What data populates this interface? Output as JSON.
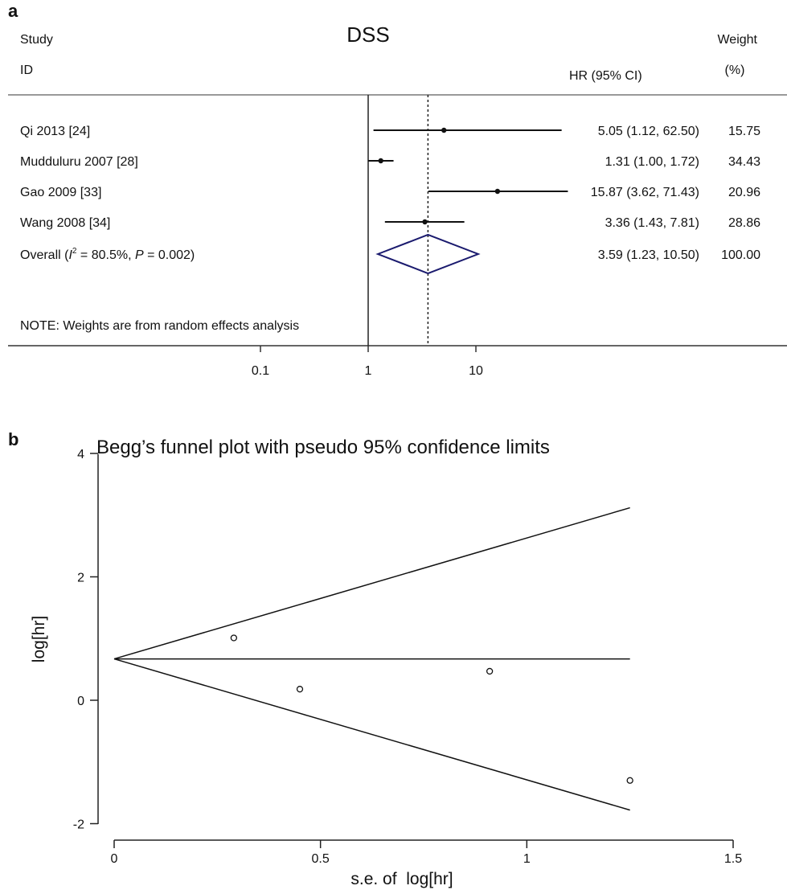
{
  "panel_a": {
    "panel_label": "a",
    "title": "DSS",
    "headers": {
      "study": "Study",
      "id": "ID",
      "hr": "HR (95% CI)",
      "weight": "Weight",
      "weight_unit": "(%)"
    },
    "overall_label": {
      "prefix": "Overall (",
      "i_char": "I",
      "sup": "2",
      "middle": " = 80.5%, ",
      "p_char": "P",
      "suffix": " = 0.002)"
    },
    "note": "NOTE: Weights are from random effects analysis"
  },
  "panel_b": {
    "panel_label": "b"
  },
  "chart_data": [
    {
      "type": "forest",
      "title": "DSS",
      "x_scale": "log",
      "x_ticks": [
        "0.1",
        "1",
        "10"
      ],
      "null_line": 1,
      "overall_line": 3.59,
      "studies": [
        {
          "label": "Qi 2013 [24]",
          "hr": 5.05,
          "lo": 1.12,
          "hi": 62.5,
          "ci_text": "5.05 (1.12, 62.50)",
          "weight": "15.75"
        },
        {
          "label": "Mudduluru 2007 [28]",
          "hr": 1.31,
          "lo": 1.0,
          "hi": 1.72,
          "ci_text": "1.31 (1.00, 1.72)",
          "weight": "34.43"
        },
        {
          "label": "Gao 2009 [33]",
          "hr": 15.87,
          "lo": 3.62,
          "hi": 71.43,
          "ci_text": "15.87 (3.62, 71.43)",
          "weight": "20.96"
        },
        {
          "label": "Wang 2008 [34]",
          "hr": 3.36,
          "lo": 1.43,
          "hi": 7.81,
          "ci_text": "3.36 (1.43, 7.81)",
          "weight": "28.86"
        }
      ],
      "overall": {
        "hr": 3.59,
        "lo": 1.23,
        "hi": 10.5,
        "ci_text": "3.59 (1.23, 10.50)",
        "weight": "100.00"
      },
      "diamond_color": "#1a1a6e"
    },
    {
      "type": "scatter",
      "title": "Begg’s funnel plot with pseudo 95% confidence limits",
      "xlabel": "s.e. of  log[hr]",
      "ylabel": "log[hr]",
      "xlim": [
        0,
        1.5
      ],
      "ylim": [
        -2,
        4
      ],
      "x_ticks": [
        0,
        0.5,
        1,
        1.5
      ],
      "x_tick_labels": [
        "0",
        "0.5",
        "1",
        "1.5"
      ],
      "y_ticks": [
        -2,
        0,
        2,
        4
      ],
      "y_tick_labels": [
        "-2",
        "0",
        "2",
        "4"
      ],
      "points": [
        {
          "x": 0.29,
          "y": 1.01
        },
        {
          "x": 0.45,
          "y": 0.18
        },
        {
          "x": 0.91,
          "y": 0.47
        },
        {
          "x": 1.25,
          "y": -1.3
        }
      ],
      "pooled_estimate": 0.67,
      "se_max": 1.25,
      "upper_limit_end": 3.12,
      "lower_limit_end": -1.78
    }
  ]
}
